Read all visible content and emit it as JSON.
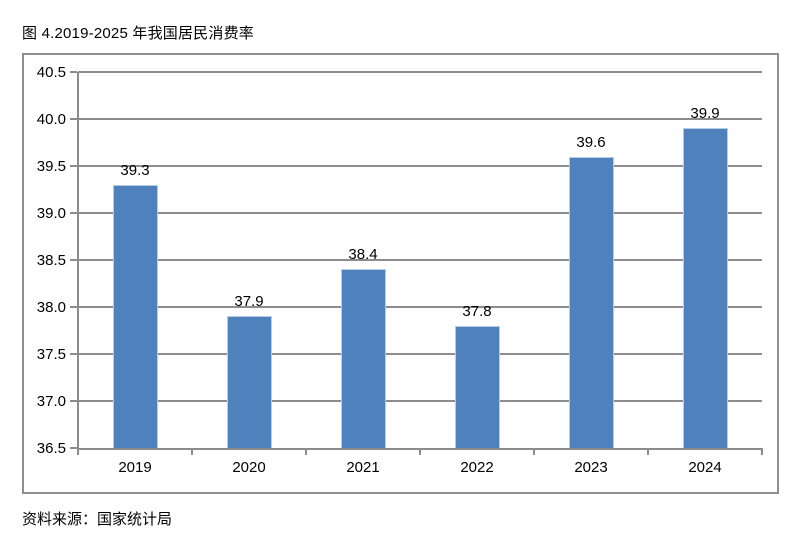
{
  "title": "图 4.2019-2025 年我国居民消费率",
  "source": "资料来源：国家统计局",
  "colors": {
    "bar_fill": "#4F81BD",
    "bar_border": "#B8CCE4",
    "gridline": "#8C8C8C",
    "axis": "#8C8C8C",
    "frame_border": "#8F8F8F",
    "text": "#000000"
  },
  "chart_data": {
    "type": "bar",
    "title": "图 4.2019-2025 年我国居民消费率",
    "categories": [
      "2019",
      "2020",
      "2021",
      "2022",
      "2023",
      "2024"
    ],
    "values": [
      39.3,
      37.9,
      38.4,
      37.8,
      39.6,
      39.9
    ],
    "data_labels": [
      "39.3",
      "37.9",
      "38.4",
      "37.8",
      "39.6",
      "39.9"
    ],
    "xlabel": "",
    "ylabel": "",
    "ylim": [
      36.5,
      40.5
    ],
    "ytick_step": 0.5,
    "ytick_labels": [
      "40.5",
      "40.0",
      "39.5",
      "39.0",
      "38.5",
      "38.0",
      "37.5",
      "37.0",
      "36.5"
    ],
    "grid": true,
    "legend_position": "none",
    "source": "资料来源：国家统计局"
  }
}
